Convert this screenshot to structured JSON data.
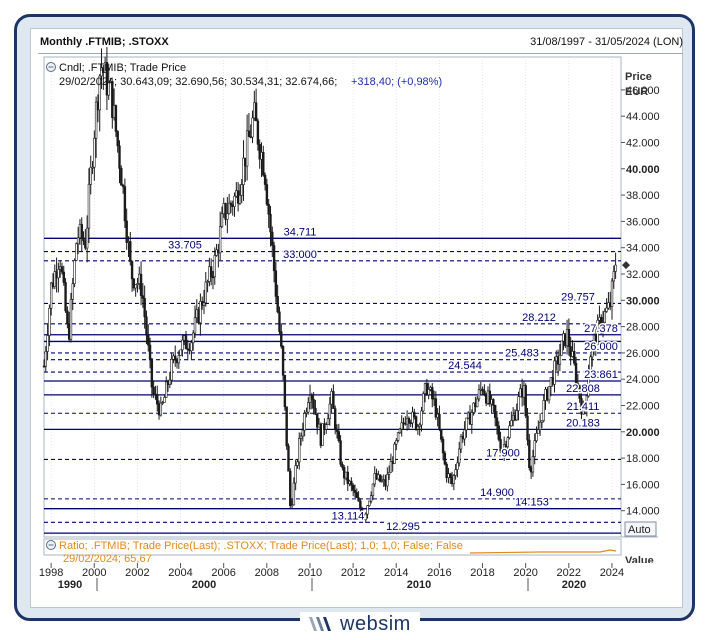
{
  "header": {
    "title": "Monthly .FTMIB; .STOXX",
    "date_range": "31/08/1997 - 31/05/2024 (LON)"
  },
  "legend": {
    "series_name": "Cndl; .FTMIB; Trade Price",
    "ohlc_text": "29/02/2024; 30.643,09; 32.690,56; 30.534,31; 32.674,66;",
    "change_text": "+318,40; (+0,98%)"
  },
  "price_axis": {
    "label_line1": "Price",
    "label_line2": "EUR",
    "auto_button": "Auto"
  },
  "lower_pane": {
    "legend_text": "Ratio; .FTMIB; Trade Price(Last); .STOXX; Trade Price(Last); 1,0; 1,0; False; False",
    "value_text": "29/02/2024; 65,67",
    "axis_label": "Value"
  },
  "branding": {
    "logo_text": "websim"
  },
  "colors": {
    "candle": "#1a1a1a",
    "level_line": "#00007a",
    "level_text": "#00007a",
    "ratio_line": "#e08a1a",
    "change_text": "#1f2db5"
  },
  "chart_data": {
    "type": "candlestick",
    "y_ticks": [
      "46.000",
      "44.000",
      "42.000",
      "40.000",
      "38.000",
      "36.000",
      "34.000",
      "32.000",
      "30.000",
      "28.000",
      "26.000",
      "24.000",
      "22.000",
      "20.000",
      "18.000",
      "16.000",
      "14.000"
    ],
    "y_range": [
      12000,
      48500
    ],
    "x_ticks_years": [
      "1998",
      "2000",
      "2002",
      "2004",
      "2006",
      "2008",
      "2010",
      "2012",
      "2014",
      "2016",
      "2018",
      "2020",
      "2022",
      "2024"
    ],
    "x_ticks_decades": [
      "1990",
      "2000",
      "2010",
      "2020"
    ],
    "x_range": [
      1997.67,
      2024.42
    ],
    "last_close": 32674.66,
    "price_path": [
      {
        "t": 1997.67,
        "v": 25000
      },
      {
        "t": 1998.0,
        "v": 31000
      },
      {
        "t": 1998.4,
        "v": 33500
      },
      {
        "t": 1998.8,
        "v": 27000
      },
      {
        "t": 1999.2,
        "v": 35000
      },
      {
        "t": 1999.6,
        "v": 34500
      },
      {
        "t": 2000.0,
        "v": 43000
      },
      {
        "t": 2000.3,
        "v": 48000
      },
      {
        "t": 2000.8,
        "v": 45500
      },
      {
        "t": 2001.3,
        "v": 39000
      },
      {
        "t": 2001.7,
        "v": 32000
      },
      {
        "t": 2002.2,
        "v": 31000
      },
      {
        "t": 2002.7,
        "v": 23000
      },
      {
        "t": 2003.1,
        "v": 21500
      },
      {
        "t": 2003.6,
        "v": 25000
      },
      {
        "t": 2004.0,
        "v": 26500
      },
      {
        "t": 2004.5,
        "v": 27000
      },
      {
        "t": 2005.0,
        "v": 30000
      },
      {
        "t": 2005.6,
        "v": 33000
      },
      {
        "t": 2006.0,
        "v": 36500
      },
      {
        "t": 2006.6,
        "v": 38000
      },
      {
        "t": 2007.0,
        "v": 41000
      },
      {
        "t": 2007.4,
        "v": 44000
      },
      {
        "t": 2007.9,
        "v": 40000
      },
      {
        "t": 2008.3,
        "v": 33000
      },
      {
        "t": 2008.7,
        "v": 25500
      },
      {
        "t": 2009.1,
        "v": 14000
      },
      {
        "t": 2009.5,
        "v": 19000
      },
      {
        "t": 2010.0,
        "v": 23500
      },
      {
        "t": 2010.5,
        "v": 19500
      },
      {
        "t": 2011.0,
        "v": 22500
      },
      {
        "t": 2011.5,
        "v": 17000
      },
      {
        "t": 2012.0,
        "v": 15500
      },
      {
        "t": 2012.5,
        "v": 13500
      },
      {
        "t": 2013.0,
        "v": 16500
      },
      {
        "t": 2013.5,
        "v": 16000
      },
      {
        "t": 2014.0,
        "v": 19000
      },
      {
        "t": 2014.5,
        "v": 21500
      },
      {
        "t": 2015.0,
        "v": 20500
      },
      {
        "t": 2015.4,
        "v": 23500
      },
      {
        "t": 2015.8,
        "v": 22000
      },
      {
        "t": 2016.3,
        "v": 17000
      },
      {
        "t": 2016.6,
        "v": 16000
      },
      {
        "t": 2017.0,
        "v": 19500
      },
      {
        "t": 2017.5,
        "v": 21500
      },
      {
        "t": 2018.0,
        "v": 23500
      },
      {
        "t": 2018.5,
        "v": 21500
      },
      {
        "t": 2018.9,
        "v": 18500
      },
      {
        "t": 2019.4,
        "v": 21000
      },
      {
        "t": 2019.9,
        "v": 23500
      },
      {
        "t": 2020.2,
        "v": 17000
      },
      {
        "t": 2020.5,
        "v": 19500
      },
      {
        "t": 2020.9,
        "v": 22500
      },
      {
        "t": 2021.4,
        "v": 25000
      },
      {
        "t": 2021.9,
        "v": 27500
      },
      {
        "t": 2022.3,
        "v": 24500
      },
      {
        "t": 2022.7,
        "v": 21000
      },
      {
        "t": 2023.0,
        "v": 26000
      },
      {
        "t": 2023.5,
        "v": 28500
      },
      {
        "t": 2023.9,
        "v": 29500
      },
      {
        "t": 2024.17,
        "v": 32675
      }
    ],
    "level_lines": [
      {
        "value": 34711,
        "label": "34.711",
        "style": "solid"
      },
      {
        "value": 33705,
        "label": "33.705",
        "style": "dashed"
      },
      {
        "value": 33000,
        "label": "33.000",
        "style": "dashed"
      },
      {
        "value": 29757,
        "label": "29.757",
        "style": "dashed"
      },
      {
        "value": 28212,
        "label": "28.212",
        "style": "dashed"
      },
      {
        "value": 27378,
        "label": "27.378",
        "style": "solid"
      },
      {
        "value": 26870,
        "label": "",
        "style": "solid"
      },
      {
        "value": 26000,
        "label": "26.000",
        "style": "dashed"
      },
      {
        "value": 25483,
        "label": "25.483",
        "style": "dashed"
      },
      {
        "value": 24544,
        "label": "24.544",
        "style": "dashed"
      },
      {
        "value": 23861,
        "label": "23.861",
        "style": "solid"
      },
      {
        "value": 22808,
        "label": "22.808",
        "style": "solid"
      },
      {
        "value": 21411,
        "label": "21.411",
        "style": "dashed"
      },
      {
        "value": 20183,
        "label": "20.183",
        "style": "solid"
      },
      {
        "value": 17900,
        "label": "17.900",
        "style": "dashed"
      },
      {
        "value": 14900,
        "label": "14.900",
        "style": "dashed"
      },
      {
        "value": 14153,
        "label": "14.153",
        "style": "solid"
      },
      {
        "value": 13114,
        "label": "13.114",
        "style": "dashed"
      },
      {
        "value": 12295,
        "label": "12.295",
        "style": "solid"
      }
    ]
  }
}
